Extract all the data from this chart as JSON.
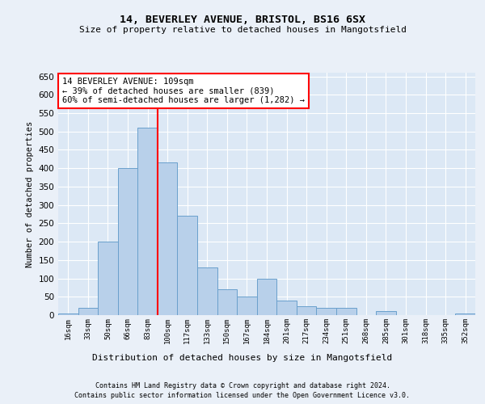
{
  "title1": "14, BEVERLEY AVENUE, BRISTOL, BS16 6SX",
  "title2": "Size of property relative to detached houses in Mangotsfield",
  "xlabel": "Distribution of detached houses by size in Mangotsfield",
  "ylabel": "Number of detached properties",
  "bar_color": "#b8d0ea",
  "bar_edge_color": "#6aa0cc",
  "bar_heights": [
    5,
    20,
    200,
    400,
    510,
    415,
    270,
    130,
    70,
    50,
    100,
    40,
    25,
    20,
    20,
    0,
    10,
    0,
    0,
    0,
    5
  ],
  "x_labels": [
    "16sqm",
    "33sqm",
    "50sqm",
    "66sqm",
    "83sqm",
    "100sqm",
    "117sqm",
    "133sqm",
    "150sqm",
    "167sqm",
    "184sqm",
    "201sqm",
    "217sqm",
    "234sqm",
    "251sqm",
    "268sqm",
    "285sqm",
    "301sqm",
    "318sqm",
    "335sqm",
    "352sqm"
  ],
  "ylim": [
    0,
    660
  ],
  "yticks": [
    0,
    50,
    100,
    150,
    200,
    250,
    300,
    350,
    400,
    450,
    500,
    550,
    600,
    650
  ],
  "red_line_x": 4.5,
  "annotation_text": "14 BEVERLEY AVENUE: 109sqm\n← 39% of detached houses are smaller (839)\n60% of semi-detached houses are larger (1,282) →",
  "fig_bg_color": "#eaf0f8",
  "ax_bg_color": "#dce8f5",
  "grid_color": "#ffffff",
  "footer1": "Contains HM Land Registry data © Crown copyright and database right 2024.",
  "footer2": "Contains public sector information licensed under the Open Government Licence v3.0."
}
